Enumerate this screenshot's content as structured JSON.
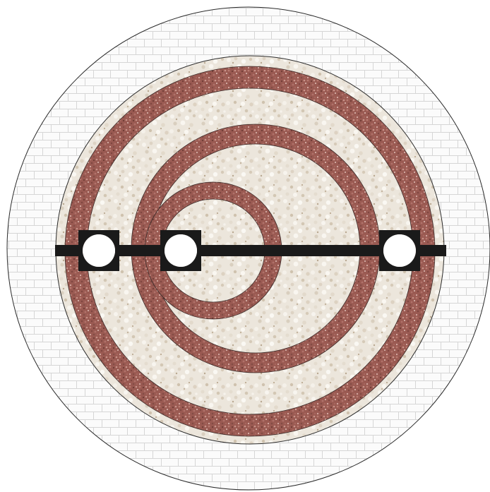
{
  "colors": {
    "background": "#ffffff",
    "paving_fill": "#fbfbfb",
    "paving_joint": "#d7d7d7",
    "outline": "#2b2b2b",
    "white_gravel": "#ece6dc",
    "red_gravel": "#9a5a52",
    "bar": "#1a1a1a",
    "hole": "#ffffff"
  },
  "materials": [
    {
      "name": "paving-slabs",
      "pattern": "paving-pattern"
    },
    {
      "name": "white-gravel",
      "pattern": "white-gravel-pattern"
    },
    {
      "name": "red-gravel",
      "pattern": "red-gravel-pattern"
    }
  ],
  "rings": [
    {
      "name": "outer-red-ring",
      "material": "red-gravel"
    },
    {
      "name": "middle-red-ring",
      "material": "red-gravel"
    },
    {
      "name": "inner-red-ring",
      "material": "red-gravel"
    }
  ],
  "nodes": [
    {
      "name": "left-node"
    },
    {
      "name": "center-node"
    },
    {
      "name": "right-node"
    }
  ]
}
